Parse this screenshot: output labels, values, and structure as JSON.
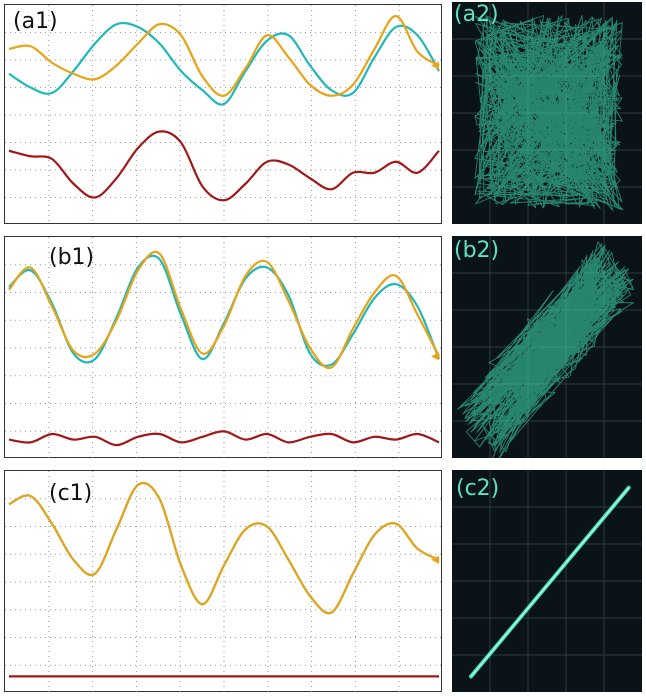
{
  "colors": {
    "cyan": "#1fb8b8",
    "orange": "#e8a317",
    "red": "#a01818",
    "grid": "#9a9a9a",
    "xy_background": "#0a1418",
    "xy_trace": "#3fe0b8",
    "xy_grid": "#2c3a3a"
  },
  "panels": [
    {
      "label": "(a1)",
      "kind": "time-trace"
    },
    {
      "label": "(a2)",
      "kind": "xy-plot"
    },
    {
      "label": "(b1)",
      "kind": "time-trace"
    },
    {
      "label": "(b2)",
      "kind": "xy-plot"
    },
    {
      "label": "(c1)",
      "kind": "time-trace"
    },
    {
      "label": "(c2)",
      "kind": "xy-plot"
    }
  ],
  "chart_data": [
    {
      "type": "line",
      "panel": "(a1)",
      "title": "",
      "xlabel": "",
      "ylabel": "",
      "grid": true,
      "x": [
        0,
        1,
        2,
        3,
        4,
        5,
        6,
        7,
        8,
        9,
        10,
        11,
        12,
        13,
        14,
        15,
        16,
        17,
        18,
        19,
        20
      ],
      "series": [
        {
          "color": "cyan",
          "values": [
            5.5,
            5.0,
            4.8,
            5.6,
            6.6,
            7.3,
            7.2,
            6.6,
            5.6,
            4.9,
            4.4,
            5.6,
            6.7,
            6.9,
            5.8,
            4.9,
            4.8,
            6.1,
            7.2,
            6.9,
            5.6
          ]
        },
        {
          "color": "orange",
          "values": [
            6.4,
            6.5,
            5.9,
            5.5,
            5.3,
            5.8,
            6.6,
            7.3,
            6.9,
            5.4,
            4.7,
            5.7,
            6.9,
            6.1,
            5.1,
            4.7,
            5.1,
            6.4,
            7.6,
            6.3,
            5.8
          ]
        },
        {
          "color": "red",
          "values": [
            2.7,
            2.5,
            2.4,
            1.5,
            1.0,
            1.7,
            2.8,
            3.4,
            3.0,
            1.4,
            0.9,
            1.5,
            2.3,
            2.2,
            1.7,
            1.3,
            1.9,
            1.9,
            2.3,
            1.9,
            2.7
          ]
        }
      ]
    },
    {
      "type": "scatter",
      "panel": "(a2)",
      "title": "",
      "description_points": "dense uncorrelated trajectory filling the square",
      "correlation": 0.0
    },
    {
      "type": "line",
      "panel": "(b1)",
      "title": "",
      "xlabel": "",
      "ylabel": "",
      "grid": true,
      "x": [
        0,
        1,
        2,
        3,
        4,
        5,
        6,
        7,
        8,
        9,
        10,
        11,
        12,
        13,
        14,
        15,
        16,
        17,
        18,
        19,
        20
      ],
      "series": [
        {
          "color": "cyan",
          "values": [
            6.2,
            6.8,
            5.6,
            3.8,
            3.6,
            5.1,
            6.9,
            7.2,
            5.2,
            3.6,
            4.9,
            6.5,
            6.9,
            5.9,
            3.8,
            3.4,
            4.5,
            5.8,
            6.3,
            5.5,
            3.6
          ]
        },
        {
          "color": "orange",
          "values": [
            6.1,
            6.9,
            5.5,
            3.9,
            3.8,
            5.0,
            6.8,
            7.4,
            5.4,
            3.8,
            4.8,
            6.6,
            7.1,
            5.7,
            4.0,
            3.3,
            4.7,
            6.0,
            6.6,
            5.2,
            3.7
          ]
        },
        {
          "color": "red",
          "values": [
            0.7,
            0.6,
            0.9,
            0.7,
            0.8,
            0.5,
            0.8,
            0.9,
            0.6,
            0.8,
            1.0,
            0.7,
            0.9,
            0.6,
            0.8,
            0.9,
            0.6,
            0.8,
            0.7,
            0.9,
            0.6
          ]
        }
      ]
    },
    {
      "type": "scatter",
      "panel": "(b2)",
      "title": "",
      "description_points": "broad diagonal band from lower-left to upper-right",
      "correlation": 0.85
    },
    {
      "type": "line",
      "panel": "(c1)",
      "title": "",
      "xlabel": "",
      "ylabel": "",
      "grid": true,
      "x": [
        0,
        1,
        2,
        3,
        4,
        5,
        6,
        7,
        8,
        9,
        10,
        11,
        12,
        13,
        14,
        15,
        16,
        17,
        18,
        19,
        20
      ],
      "series": [
        {
          "color": "cyan",
          "values": [
            6.8,
            7.1,
            6.1,
            4.8,
            4.3,
            5.9,
            7.5,
            7.0,
            4.6,
            3.2,
            4.6,
            5.9,
            6.0,
            4.8,
            3.5,
            2.9,
            4.3,
            5.7,
            6.1,
            5.2,
            4.8
          ]
        },
        {
          "color": "orange",
          "values": [
            6.8,
            7.1,
            6.1,
            4.8,
            4.3,
            5.9,
            7.5,
            7.0,
            4.6,
            3.2,
            4.6,
            5.9,
            6.0,
            4.8,
            3.5,
            2.9,
            4.3,
            5.7,
            6.1,
            5.2,
            4.8
          ]
        },
        {
          "color": "red",
          "values": [
            0.6,
            0.6,
            0.6,
            0.6,
            0.6,
            0.6,
            0.6,
            0.6,
            0.6,
            0.6,
            0.6,
            0.6,
            0.6,
            0.6,
            0.6,
            0.6,
            0.6,
            0.6,
            0.6,
            0.6,
            0.6
          ]
        }
      ]
    },
    {
      "type": "scatter",
      "panel": "(c2)",
      "title": "",
      "description_points": "thin straight diagonal line from lower-left to upper-right",
      "correlation": 0.999
    }
  ]
}
